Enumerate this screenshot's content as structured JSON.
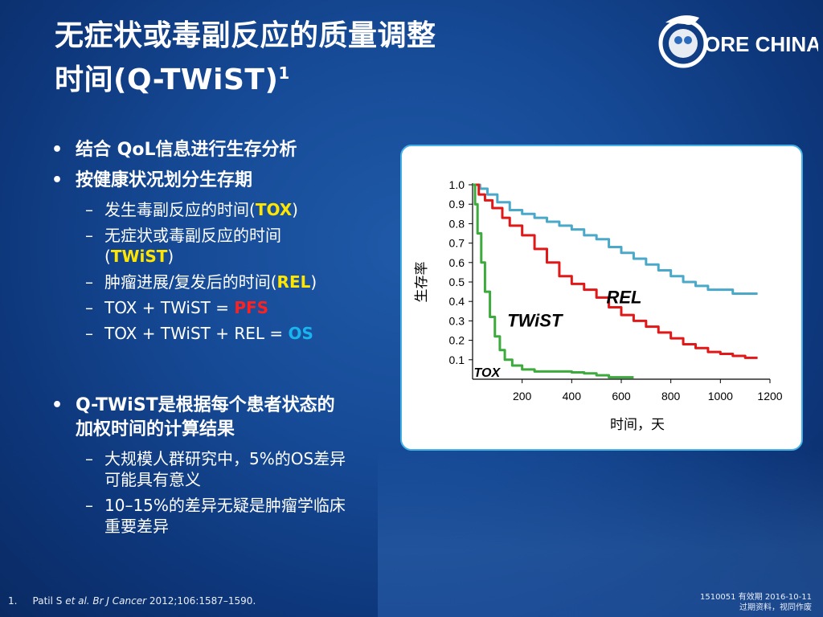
{
  "title": {
    "line1": "无症状或毒副反应的质量调整",
    "line2": "时间(Q-TWiST)",
    "sup": "1"
  },
  "logo": {
    "text": "ORE CHINA",
    "letter": "C"
  },
  "bullets": {
    "item1": "结合 QoL信息进行生存分析",
    "item2": "按健康状况划分生存期",
    "sub1": {
      "pre": "发生毒副反应的时间(",
      "hl": "TOX",
      "post": ")"
    },
    "sub2": {
      "line1": "无症状或毒副反应的时间",
      "pre": "(",
      "hl": "TWiST",
      "post": ")"
    },
    "sub3": {
      "pre": "肿瘤进展/复发后的时间(",
      "hl": "REL",
      "post": ")"
    },
    "sub4": {
      "pre": "TOX + TWiST = ",
      "hl": "PFS"
    },
    "sub5": {
      "pre": "TOX + TWiST + REL = ",
      "hl": "OS"
    },
    "item3_line1": "Q-TWiST是根据每个患者状态的",
    "item3_line2": "加权时间的计算结果",
    "sub6_line1": "大规模人群研究中，5%的OS差异",
    "sub6_line2": "可能具有意义",
    "sub7_line1": "10–15%的差异无疑是肿瘤学临床",
    "sub7_line2": "重要差异"
  },
  "footnote": {
    "num": "1.",
    "author": "Patil S ",
    "etal": "et al.",
    "journal": " Br J Cancer",
    "ref": " 2012;106:1587–1590."
  },
  "code": {
    "line1": "1510051  有效期 2016-10-11",
    "line2": "过期资料，视同作废"
  },
  "colors": {
    "rel": "#1ad1ff",
    "twist": "#ffe600",
    "pfs": "#ff2020",
    "os": "#19b4f0",
    "curve_rel": "#4aa8c8",
    "curve_twist": "#e01818",
    "curve_tox": "#3caa3c"
  },
  "chart_data": {
    "type": "line",
    "xlabel": "时间，天",
    "ylabel": "生存率",
    "xlim": [
      0,
      1200
    ],
    "ylim": [
      0,
      1.0
    ],
    "xticks": [
      200,
      400,
      600,
      800,
      1000,
      1200
    ],
    "yticks": [
      0.1,
      0.2,
      0.3,
      0.4,
      0.5,
      0.6,
      0.7,
      0.8,
      0.9,
      1.0
    ],
    "annotations": [
      "REL",
      "TWiST",
      "TOX"
    ],
    "series": [
      {
        "name": "REL",
        "color": "#4aa8c8",
        "x": [
          0,
          30,
          60,
          100,
          150,
          200,
          250,
          300,
          350,
          400,
          450,
          500,
          550,
          600,
          650,
          700,
          750,
          800,
          850,
          900,
          950,
          1000,
          1050,
          1100,
          1150
        ],
        "y": [
          1.0,
          0.98,
          0.95,
          0.91,
          0.87,
          0.85,
          0.83,
          0.81,
          0.79,
          0.77,
          0.74,
          0.72,
          0.68,
          0.65,
          0.62,
          0.59,
          0.56,
          0.53,
          0.5,
          0.48,
          0.46,
          0.46,
          0.44,
          0.44,
          0.44
        ]
      },
      {
        "name": "TWiST",
        "color": "#e01818",
        "x": [
          0,
          25,
          50,
          80,
          120,
          150,
          200,
          250,
          300,
          350,
          400,
          450,
          500,
          550,
          600,
          650,
          700,
          750,
          800,
          850,
          900,
          950,
          1000,
          1050,
          1100,
          1150
        ],
        "y": [
          1.0,
          0.95,
          0.92,
          0.88,
          0.83,
          0.79,
          0.74,
          0.67,
          0.6,
          0.53,
          0.49,
          0.46,
          0.42,
          0.37,
          0.33,
          0.3,
          0.27,
          0.24,
          0.21,
          0.18,
          0.16,
          0.14,
          0.13,
          0.12,
          0.11,
          0.11
        ]
      },
      {
        "name": "TOX",
        "color": "#3caa3c",
        "x": [
          0,
          10,
          20,
          35,
          50,
          70,
          90,
          110,
          130,
          160,
          200,
          250,
          300,
          350,
          400,
          450,
          500,
          550,
          600,
          650
        ],
        "y": [
          1.0,
          0.9,
          0.75,
          0.6,
          0.45,
          0.32,
          0.22,
          0.15,
          0.1,
          0.07,
          0.05,
          0.04,
          0.04,
          0.04,
          0.035,
          0.03,
          0.02,
          0.01,
          0.01,
          0.01
        ]
      }
    ]
  }
}
